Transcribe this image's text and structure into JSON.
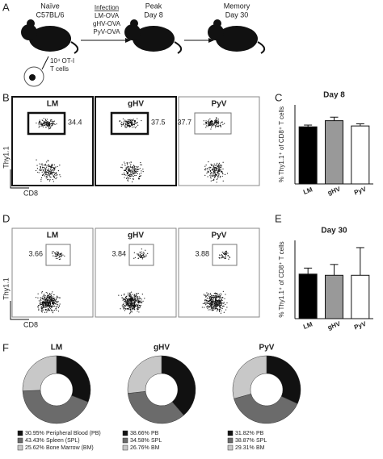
{
  "panels": [
    "A",
    "B",
    "C",
    "D",
    "E",
    "F"
  ],
  "diagram": {
    "naive": [
      "Naïve",
      "C57BL/6"
    ],
    "infection": {
      "title": "Infection",
      "items": [
        "LM-OVA",
        "gHV-OVA",
        "PyV-OVA"
      ]
    },
    "peak": [
      "Peak",
      "Day 8"
    ],
    "memory": [
      "Memory",
      "Day 30"
    ],
    "transfer": [
      "10⁴ OT-I",
      "T cells"
    ]
  },
  "flow_b": {
    "x_label": "CD8",
    "y_label": "Thy1.1",
    "plots": [
      {
        "title": "LM",
        "value": "34.4"
      },
      {
        "title": "gHV",
        "value": "37.5"
      },
      {
        "title": "PyV",
        "value": "37.7"
      }
    ]
  },
  "flow_d": {
    "x_label": "CD8",
    "y_label": "Thy1.1",
    "plots": [
      {
        "title": "LM",
        "value": "3.66"
      },
      {
        "title": "gHV",
        "value": "3.84"
      },
      {
        "title": "PyV",
        "value": "3.88"
      }
    ]
  },
  "chart_data": [
    {
      "type": "bar",
      "title": "Day 8",
      "y_label": "% Thy1.1⁺ of CD8⁺ T cells",
      "categories": [
        "LM",
        "gHV",
        "PyV"
      ],
      "values": [
        32.5,
        36,
        33
      ],
      "errors": [
        1,
        2,
        1.2
      ],
      "colors": [
        "#000000",
        "#999999",
        "#ffffff"
      ],
      "ylim": [
        0,
        45
      ]
    },
    {
      "type": "bar",
      "title": "Day 30",
      "y_label": "% Thy1.1⁺ of CD8⁺ T cells",
      "categories": [
        "LM",
        "gHV",
        "PyV"
      ],
      "values": [
        3.7,
        3.6,
        3.6
      ],
      "errors": [
        0.5,
        0.9,
        2.3
      ],
      "colors": [
        "#000000",
        "#999999",
        "#ffffff"
      ],
      "ylim": [
        0,
        6.5
      ]
    },
    {
      "type": "pie",
      "title": "LM",
      "categories": [
        "Peripheral Blood (PB)",
        "Spleen (SPL)",
        "Bone Marrow (BM)"
      ],
      "values": [
        30.95,
        43.43,
        25.62
      ],
      "value_labels": [
        "30.95%",
        "43.43%",
        "25.62%"
      ],
      "colors": [
        "#111111",
        "#6b6b6b",
        "#c8c8c8"
      ]
    },
    {
      "type": "pie",
      "title": "gHV",
      "categories": [
        "PB",
        "SPL",
        "BM"
      ],
      "values": [
        38.66,
        34.58,
        26.76
      ],
      "value_labels": [
        "38.66%",
        "34.58%",
        "26.76%"
      ],
      "colors": [
        "#111111",
        "#6b6b6b",
        "#c8c8c8"
      ]
    },
    {
      "type": "pie",
      "title": "PyV",
      "categories": [
        "PB",
        "SPL",
        "BM"
      ],
      "values": [
        31.82,
        38.87,
        29.31
      ],
      "value_labels": [
        "31.82%",
        "38.87%",
        "29.31%"
      ],
      "colors": [
        "#111111",
        "#6b6b6b",
        "#c8c8c8"
      ]
    }
  ]
}
